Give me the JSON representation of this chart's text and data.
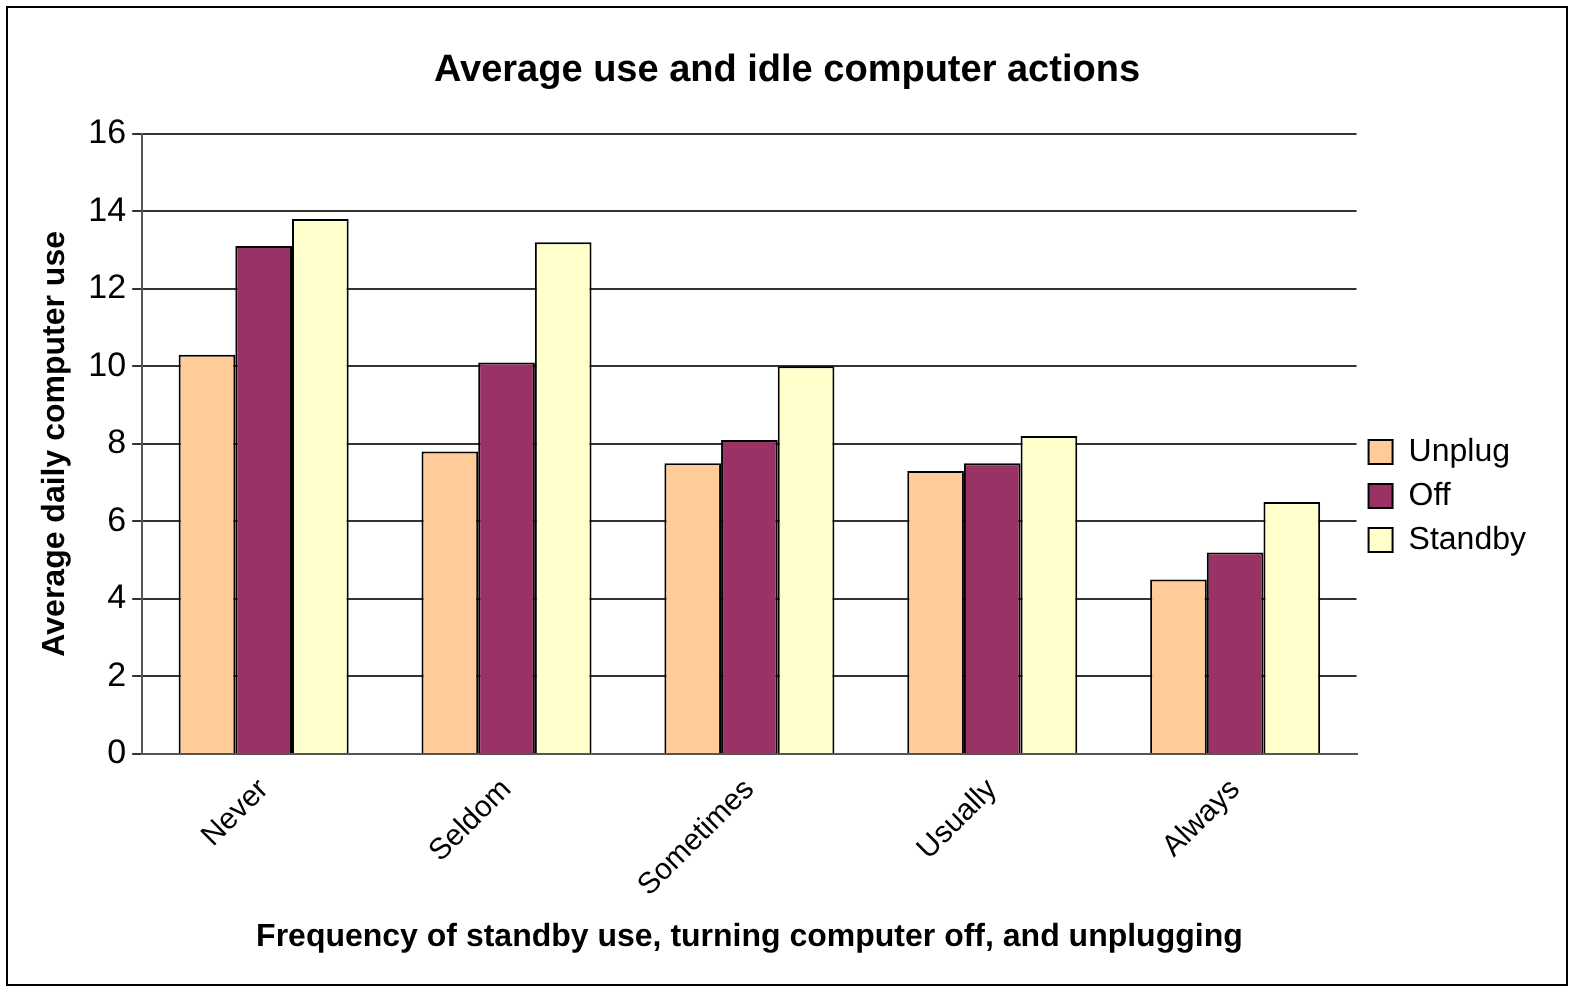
{
  "chart_data": {
    "type": "bar",
    "title": "Average use and idle computer actions",
    "xlabel": "Frequency of standby use, turning computer off, and unplugging",
    "ylabel": "Average daily computer use",
    "categories": [
      "Never",
      "Seldom",
      "Sometimes",
      "Usually",
      "Always"
    ],
    "series": [
      {
        "name": "Unplug",
        "color": "#ffcc99",
        "values": [
          10.3,
          7.8,
          7.5,
          7.3,
          4.5
        ]
      },
      {
        "name": "Off",
        "color": "#993366",
        "values": [
          13.1,
          10.1,
          8.1,
          7.5,
          5.2
        ]
      },
      {
        "name": "Standby",
        "color": "#ffffcc",
        "values": [
          13.8,
          13.2,
          10.0,
          8.2,
          6.5
        ]
      }
    ],
    "ylim": [
      0,
      16
    ],
    "yticks": [
      0,
      2,
      4,
      6,
      8,
      10,
      12,
      14,
      16
    ],
    "grid": "y",
    "legend": "right"
  }
}
